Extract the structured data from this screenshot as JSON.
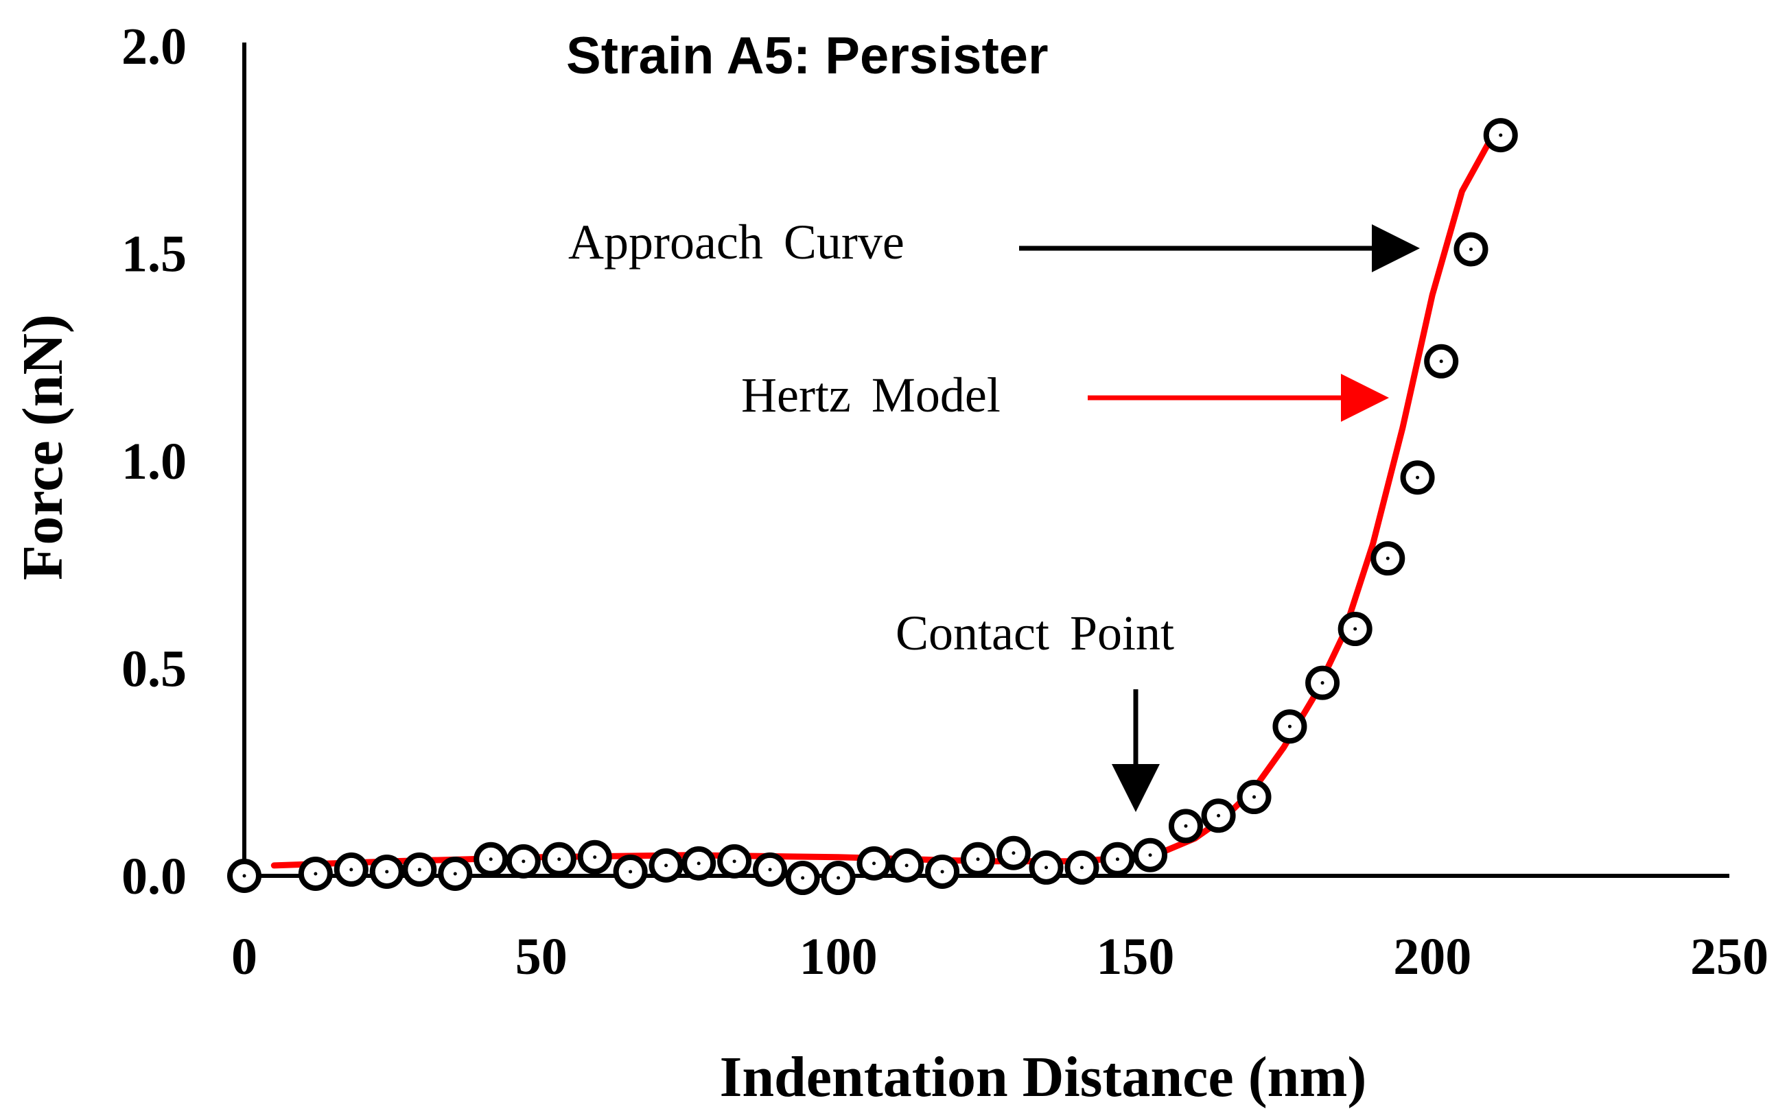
{
  "chart_data": {
    "type": "scatter",
    "title": "Strain A5: Persister",
    "xlabel": "Indentation Distance (nm)",
    "ylabel": "Force (nN)",
    "xlim": [
      0,
      250
    ],
    "ylim": [
      0,
      2.0
    ],
    "x_ticks": [
      "0",
      "50",
      "100",
      "150",
      "200",
      "250"
    ],
    "y_ticks": [
      "0.0",
      "0.5",
      "1.0",
      "1.5",
      "2.0"
    ],
    "grid": false,
    "series": [
      {
        "name": "Approach Curve",
        "style": "open-circle",
        "color": "#000000",
        "points": [
          [
            0,
            0.0
          ],
          [
            12,
            0.005
          ],
          [
            18,
            0.015
          ],
          [
            24,
            0.01
          ],
          [
            29.5,
            0.015
          ],
          [
            35.5,
            0.005
          ],
          [
            41.5,
            0.04
          ],
          [
            47,
            0.035
          ],
          [
            53,
            0.04
          ],
          [
            59,
            0.045
          ],
          [
            65,
            0.01
          ],
          [
            71,
            0.025
          ],
          [
            76.5,
            0.03
          ],
          [
            82.5,
            0.035
          ],
          [
            88.5,
            0.015
          ],
          [
            94,
            -0.005
          ],
          [
            100,
            -0.005
          ],
          [
            106,
            0.03
          ],
          [
            111.5,
            0.025
          ],
          [
            117.5,
            0.01
          ],
          [
            123.5,
            0.04
          ],
          [
            129.5,
            0.055
          ],
          [
            135,
            0.02
          ],
          [
            141,
            0.02
          ],
          [
            147,
            0.04
          ],
          [
            152.5,
            0.05
          ],
          [
            158.5,
            0.12
          ],
          [
            164,
            0.145
          ],
          [
            170,
            0.19
          ],
          [
            176,
            0.36
          ],
          [
            181.5,
            0.465
          ],
          [
            187,
            0.595
          ],
          [
            192.5,
            0.765
          ],
          [
            197.5,
            0.96
          ],
          [
            201.5,
            1.24
          ],
          [
            206.5,
            1.51
          ],
          [
            211.5,
            1.785
          ]
        ]
      },
      {
        "name": "Hertz Model",
        "style": "line",
        "color": "#ff0000",
        "points": [
          [
            5,
            0.025
          ],
          [
            25,
            0.035
          ],
          [
            50,
            0.045
          ],
          [
            75,
            0.05
          ],
          [
            100,
            0.045
          ],
          [
            125,
            0.035
          ],
          [
            140,
            0.035
          ],
          [
            150,
            0.045
          ],
          [
            155,
            0.06
          ],
          [
            160,
            0.09
          ],
          [
            165,
            0.14
          ],
          [
            170,
            0.21
          ],
          [
            175,
            0.31
          ],
          [
            180,
            0.43
          ],
          [
            185,
            0.58
          ],
          [
            190,
            0.8
          ],
          [
            195,
            1.08
          ],
          [
            200,
            1.4
          ],
          [
            205,
            1.65
          ],
          [
            210,
            1.78
          ]
        ]
      }
    ],
    "annotations": [
      {
        "text": "Approach Curve",
        "arrow_color": "#000000",
        "target": [
          206.5,
          1.51
        ]
      },
      {
        "text": "Hertz Model",
        "arrow_color": "#ff0000",
        "target": [
          202,
          1.15
        ]
      },
      {
        "text": "Contact Point",
        "arrow_color": "#000000",
        "target": [
          150,
          0.15
        ]
      }
    ]
  }
}
